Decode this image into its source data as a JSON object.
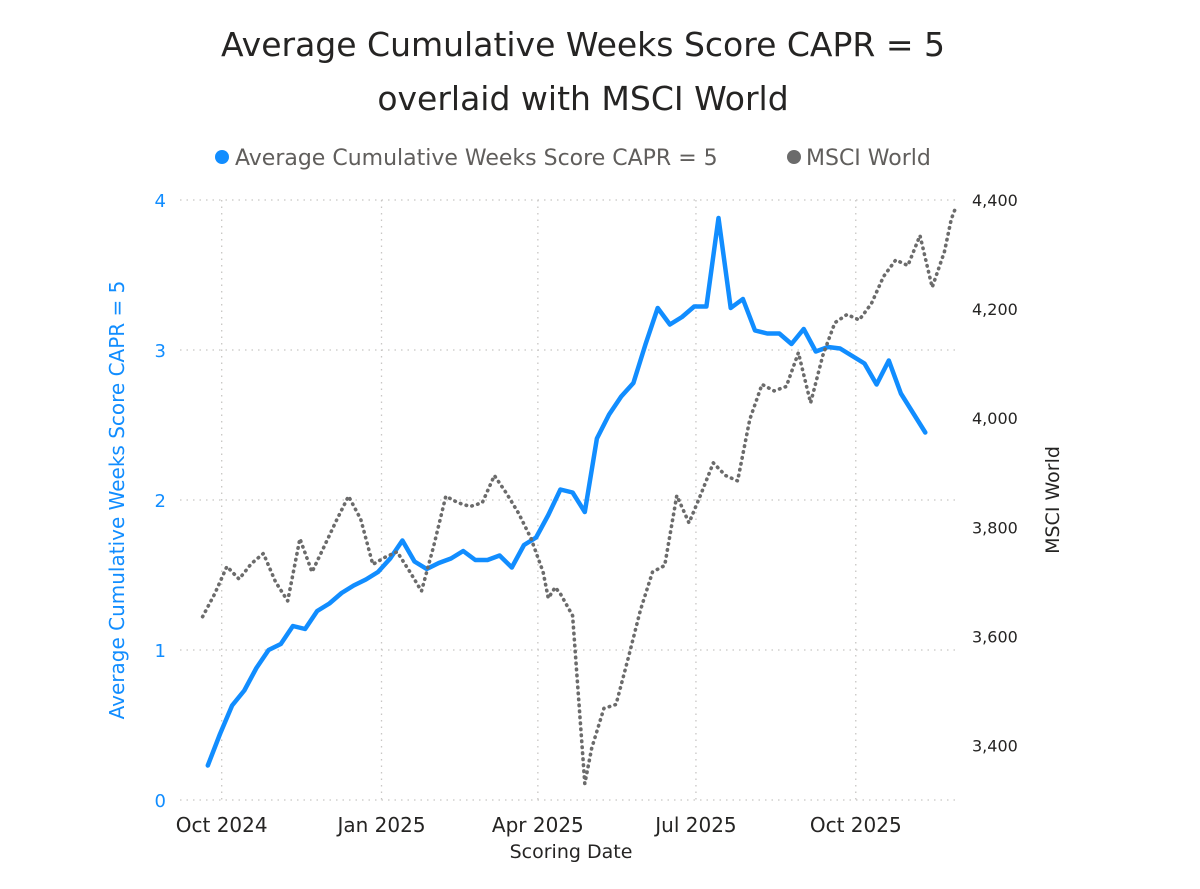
{
  "chart_data": {
    "type": "line",
    "title": [
      "Average Cumulative Weeks Score CAPR = 5",
      "overlaid with MSCI World"
    ],
    "legend": [
      {
        "name": "Average Cumulative Weeks Score CAPR = 5",
        "color": "#118dff",
        "style": "solid"
      },
      {
        "name": "MSCI World",
        "color": "#6b6b6b",
        "style": "dotted"
      }
    ],
    "xlabel": "Scoring Date",
    "ylabel_left": "Average Cumulative Weeks Score CAPR = 5",
    "ylabel_right": "MSCI World",
    "x_ticks": [
      {
        "label": "Oct 2024",
        "date": "2024-10-01"
      },
      {
        "label": "Jan 2025",
        "date": "2025-01-01"
      },
      {
        "label": "Apr 2025",
        "date": "2025-04-01"
      },
      {
        "label": "Jul 2025",
        "date": "2025-07-01"
      },
      {
        "label": "Oct 2025",
        "date": "2025-10-01"
      }
    ],
    "x_range": [
      "2024-09-07",
      "2025-11-30"
    ],
    "y_left": {
      "min": 0,
      "max": 4,
      "ticks": [
        0,
        1,
        2,
        3,
        4
      ],
      "tick_labels": [
        "0",
        "1",
        "2",
        "3",
        "4"
      ]
    },
    "y_right": {
      "min": 3300,
      "max": 4400,
      "ticks": [
        3400,
        3600,
        3800,
        4000,
        4200,
        4400
      ],
      "tick_labels": [
        "3,400",
        "3,600",
        "3,800",
        "4,000",
        "4,200",
        "4,400"
      ]
    },
    "grid": "dotted",
    "series": [
      {
        "name": "Average Cumulative Weeks Score CAPR = 5",
        "axis": "left",
        "points": [
          [
            "2024-09-23",
            0.23
          ],
          [
            "2024-09-30",
            0.44
          ],
          [
            "2024-10-07",
            0.63
          ],
          [
            "2024-10-14",
            0.73
          ],
          [
            "2024-10-21",
            0.88
          ],
          [
            "2024-10-28",
            1.0
          ],
          [
            "2024-11-04",
            1.04
          ],
          [
            "2024-11-11",
            1.16
          ],
          [
            "2024-11-18",
            1.14
          ],
          [
            "2024-11-25",
            1.26
          ],
          [
            "2024-12-02",
            1.31
          ],
          [
            "2024-12-09",
            1.38
          ],
          [
            "2024-12-16",
            1.43
          ],
          [
            "2024-12-23",
            1.47
          ],
          [
            "2024-12-30",
            1.52
          ],
          [
            "2025-01-06",
            1.61
          ],
          [
            "2025-01-13",
            1.73
          ],
          [
            "2025-01-20",
            1.59
          ],
          [
            "2025-01-27",
            1.54
          ],
          [
            "2025-02-03",
            1.58
          ],
          [
            "2025-02-10",
            1.61
          ],
          [
            "2025-02-17",
            1.66
          ],
          [
            "2025-02-24",
            1.6
          ],
          [
            "2025-03-03",
            1.6
          ],
          [
            "2025-03-10",
            1.63
          ],
          [
            "2025-03-17",
            1.55
          ],
          [
            "2025-03-24",
            1.7
          ],
          [
            "2025-03-31",
            1.75
          ],
          [
            "2025-04-07",
            1.9
          ],
          [
            "2025-04-14",
            2.07
          ],
          [
            "2025-04-21",
            2.05
          ],
          [
            "2025-04-28",
            1.92
          ],
          [
            "2025-05-05",
            2.41
          ],
          [
            "2025-05-12",
            2.57
          ],
          [
            "2025-05-19",
            2.69
          ],
          [
            "2025-05-26",
            2.78
          ],
          [
            "2025-06-02",
            3.04
          ],
          [
            "2025-06-09",
            3.28
          ],
          [
            "2025-06-16",
            3.17
          ],
          [
            "2025-06-23",
            3.22
          ],
          [
            "2025-06-30",
            3.29
          ],
          [
            "2025-07-07",
            3.29
          ],
          [
            "2025-07-14",
            3.88
          ],
          [
            "2025-07-21",
            3.28
          ],
          [
            "2025-07-28",
            3.34
          ],
          [
            "2025-08-04",
            3.13
          ],
          [
            "2025-08-11",
            3.11
          ],
          [
            "2025-08-18",
            3.11
          ],
          [
            "2025-08-25",
            3.04
          ],
          [
            "2025-09-01",
            3.14
          ],
          [
            "2025-09-08",
            2.99
          ],
          [
            "2025-09-15",
            3.02
          ],
          [
            "2025-09-22",
            3.01
          ],
          [
            "2025-09-29",
            2.96
          ],
          [
            "2025-10-06",
            2.91
          ],
          [
            "2025-10-13",
            2.77
          ],
          [
            "2025-10-20",
            2.93
          ],
          [
            "2025-10-27",
            2.71
          ],
          [
            "2025-11-03",
            2.58
          ],
          [
            "2025-11-10",
            2.45
          ]
        ]
      },
      {
        "name": "MSCI World",
        "axis": "right",
        "points": [
          [
            "2024-09-20",
            3636
          ],
          [
            "2024-09-27",
            3678
          ],
          [
            "2024-10-04",
            3728
          ],
          [
            "2024-10-11",
            3705
          ],
          [
            "2024-10-18",
            3733
          ],
          [
            "2024-10-25",
            3752
          ],
          [
            "2024-11-01",
            3700
          ],
          [
            "2024-11-08",
            3665
          ],
          [
            "2024-11-15",
            3779
          ],
          [
            "2024-11-22",
            3718
          ],
          [
            "2024-11-29",
            3765
          ],
          [
            "2024-12-06",
            3812
          ],
          [
            "2024-12-13",
            3857
          ],
          [
            "2024-12-20",
            3815
          ],
          [
            "2024-12-27",
            3732
          ],
          [
            "2025-01-03",
            3745
          ],
          [
            "2025-01-10",
            3755
          ],
          [
            "2025-01-17",
            3720
          ],
          [
            "2025-01-24",
            3683
          ],
          [
            "2025-01-31",
            3765
          ],
          [
            "2025-02-07",
            3857
          ],
          [
            "2025-02-14",
            3845
          ],
          [
            "2025-02-21",
            3838
          ],
          [
            "2025-02-28",
            3845
          ],
          [
            "2025-03-07",
            3895
          ],
          [
            "2025-03-14",
            3862
          ],
          [
            "2025-03-21",
            3825
          ],
          [
            "2025-03-28",
            3780
          ],
          [
            "2025-04-04",
            3718
          ],
          [
            "2025-04-07",
            3670
          ],
          [
            "2025-04-11",
            3690
          ],
          [
            "2025-04-14",
            3678
          ],
          [
            "2025-04-21",
            3638
          ],
          [
            "2025-04-28",
            3330
          ],
          [
            "2025-05-02",
            3395
          ],
          [
            "2025-05-09",
            3468
          ],
          [
            "2025-05-16",
            3475
          ],
          [
            "2025-05-23",
            3560
          ],
          [
            "2025-05-30",
            3648
          ],
          [
            "2025-06-06",
            3718
          ],
          [
            "2025-06-13",
            3730
          ],
          [
            "2025-06-20",
            3858
          ],
          [
            "2025-06-27",
            3808
          ],
          [
            "2025-07-04",
            3862
          ],
          [
            "2025-07-11",
            3918
          ],
          [
            "2025-07-18",
            3895
          ],
          [
            "2025-07-25",
            3885
          ],
          [
            "2025-08-01",
            3998
          ],
          [
            "2025-08-08",
            4062
          ],
          [
            "2025-08-15",
            4050
          ],
          [
            "2025-08-22",
            4058
          ],
          [
            "2025-08-29",
            4120
          ],
          [
            "2025-09-05",
            4028
          ],
          [
            "2025-09-12",
            4115
          ],
          [
            "2025-09-19",
            4175
          ],
          [
            "2025-09-26",
            4190
          ],
          [
            "2025-10-03",
            4180
          ],
          [
            "2025-10-10",
            4210
          ],
          [
            "2025-10-17",
            4260
          ],
          [
            "2025-10-24",
            4290
          ],
          [
            "2025-10-31",
            4280
          ],
          [
            "2025-11-07",
            4335
          ],
          [
            "2025-11-14",
            4240
          ],
          [
            "2025-11-21",
            4305
          ],
          [
            "2025-11-25",
            4365
          ],
          [
            "2025-11-28",
            4390
          ]
        ]
      }
    ]
  }
}
